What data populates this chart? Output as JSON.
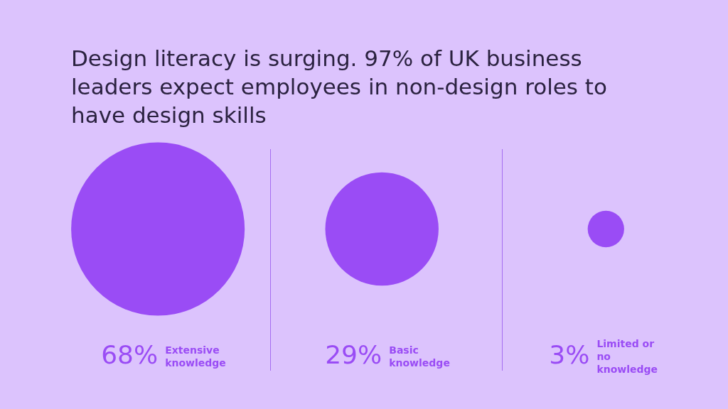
{
  "chart_data": {
    "type": "other",
    "title": "Design literacy is surging. 97% of UK business leaders expect employees in non-design roles to have design skills",
    "categories": [
      "Extensive knowledge",
      "Basic knowledge",
      "Limited or no knowledge"
    ],
    "values": [
      68,
      29,
      3
    ],
    "value_labels": [
      "68%",
      "29%",
      "3%"
    ],
    "color": "#9a4cf5",
    "legend": false
  }
}
